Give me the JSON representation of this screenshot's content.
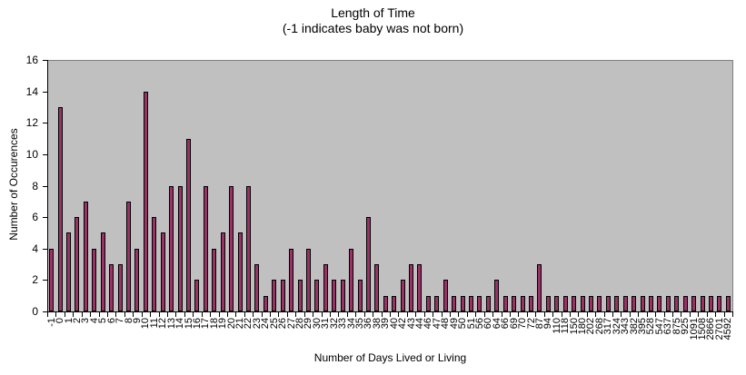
{
  "chart_data": {
    "type": "bar",
    "title": "Length of Time",
    "subtitle": "(-1 indicates baby was not born)",
    "xlabel": "Number of Days Lived  or Living",
    "ylabel": "Number of Occurences",
    "ylim": [
      0,
      16
    ],
    "yticks": [
      0,
      2,
      4,
      6,
      8,
      10,
      12,
      14,
      16
    ],
    "grid": false,
    "legend": "none",
    "plot_background": "#c0c0c0",
    "bar_color": "#993366",
    "categories": [
      "-1",
      "0",
      "1",
      "2",
      "3",
      "4",
      "5",
      "6",
      "7",
      "8",
      "9",
      "10",
      "11",
      "12",
      "13",
      "14",
      "15",
      "16",
      "17",
      "18",
      "19",
      "20",
      "21",
      "22",
      "23",
      "24",
      "25",
      "26",
      "27",
      "28",
      "29",
      "30",
      "31",
      "32",
      "33",
      "34",
      "35",
      "36",
      "38",
      "39",
      "40",
      "42",
      "43",
      "44",
      "46",
      "47",
      "48",
      "49",
      "50",
      "51",
      "56",
      "60",
      "64",
      "66",
      "69",
      "70",
      "72",
      "87",
      "94",
      "110",
      "118",
      "150",
      "180",
      "202",
      "268",
      "317",
      "324",
      "343",
      "382",
      "395",
      "528",
      "547",
      "637",
      "875",
      "925",
      "1091",
      "1508",
      "2866",
      "2701",
      "4592"
    ],
    "values": [
      4,
      13,
      5,
      6,
      7,
      4,
      5,
      3,
      3,
      7,
      4,
      14,
      6,
      5,
      8,
      8,
      11,
      2,
      8,
      4,
      5,
      8,
      5,
      8,
      3,
      1,
      2,
      2,
      4,
      2,
      4,
      2,
      3,
      2,
      2,
      4,
      2,
      6,
      3,
      1,
      1,
      2,
      3,
      3,
      1,
      1,
      2,
      1,
      1,
      1,
      1,
      1,
      2,
      1,
      1,
      1,
      1,
      3,
      1,
      1,
      1,
      1,
      1,
      1,
      1,
      1,
      1,
      1,
      1,
      1,
      1,
      1,
      1,
      1,
      1,
      1,
      1,
      1,
      1,
      1
    ]
  }
}
